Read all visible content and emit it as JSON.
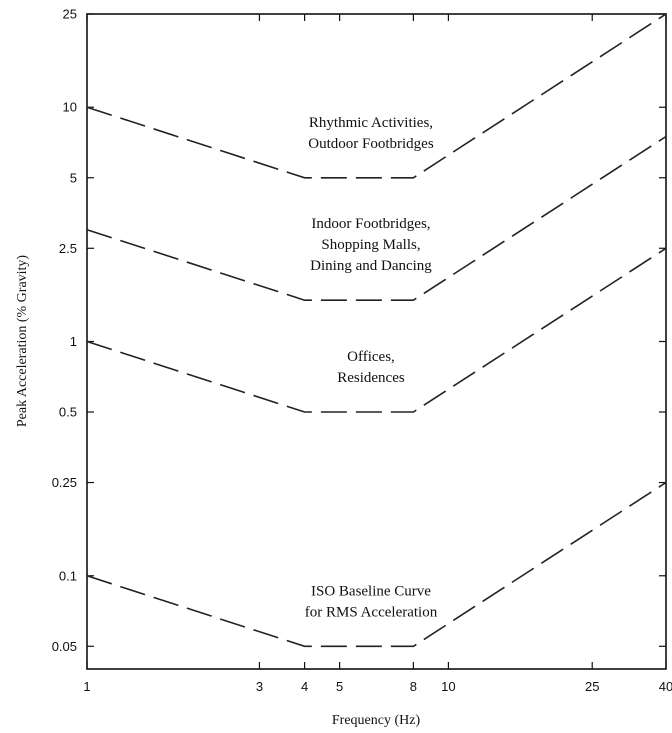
{
  "chart_data": {
    "type": "line",
    "title": "",
    "xlabel": "Frequency (Hz)",
    "ylabel": "Peak Acceleration (% Gravity)",
    "xscale": "log",
    "yscale": "log",
    "xlim": [
      1,
      40
    ],
    "ylim": [
      0.04,
      25
    ],
    "xticks": [
      1,
      3,
      4,
      5,
      8,
      10,
      25,
      40
    ],
    "xtick_labels": [
      "1",
      "3",
      "4",
      "5",
      "8",
      "10",
      "25",
      "40"
    ],
    "yticks": [
      0.05,
      0.1,
      0.25,
      0.5,
      1,
      2.5,
      5,
      10,
      25
    ],
    "ytick_labels": [
      "0.05",
      "0.1",
      "0.25",
      "0.5",
      "1",
      "2.5",
      "5",
      "10",
      "25"
    ],
    "grid": false,
    "legend": "none",
    "series": [
      {
        "x": [
          1,
          4,
          8,
          40
        ],
        "y": [
          10,
          5,
          5,
          25
        ],
        "annotation": [
          "Rhythmic Activities,",
          "Outdoor Footbridges"
        ]
      },
      {
        "x": [
          1,
          4,
          8,
          40
        ],
        "y": [
          3,
          1.5,
          1.5,
          7.5
        ],
        "annotation": [
          "Indoor Footbridges,",
          "Shopping Malls,",
          "Dining and Dancing"
        ]
      },
      {
        "x": [
          1,
          4,
          8,
          40
        ],
        "y": [
          1,
          0.5,
          0.5,
          2.5
        ],
        "annotation": [
          "Offices,",
          "Residences"
        ]
      },
      {
        "x": [
          1,
          4,
          8,
          40
        ],
        "y": [
          0.1,
          0.05,
          0.05,
          0.25
        ],
        "annotation": [
          "ISO Baseline Curve",
          "for RMS Acceleration"
        ]
      }
    ]
  }
}
